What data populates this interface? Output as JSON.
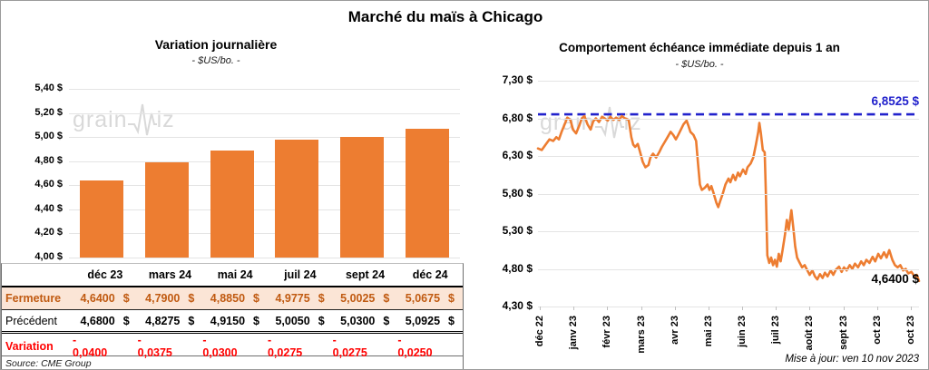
{
  "page": {
    "title": "Marché du maïs à Chicago",
    "updated": "Mise à jour: ven 10 nov 2023",
    "source": "Source: CME Group",
    "watermark_pre": "grain",
    "watermark_post": "iz"
  },
  "colors": {
    "accent_orange": "#ED7D31",
    "reference_blue": "#2222CC",
    "variation_red": "#FF0000",
    "fermeture_bg": "#FBE5D6",
    "fermeture_text": "#C05A11",
    "watermark_gray": "#D9D9D9",
    "gridline_gray": "#E4E4E4"
  },
  "chart_data": [
    {
      "type": "bar",
      "title": "Variation journalière",
      "subtitle": "- $US/bo. -",
      "categories": [
        "déc 23",
        "mars 24",
        "mai 24",
        "juil 24",
        "sept 24",
        "déc 24"
      ],
      "values": [
        4.64,
        4.79,
        4.885,
        4.9775,
        5.0025,
        5.0675
      ],
      "ylim": [
        4.0,
        5.4
      ],
      "ytick_labels": [
        "5,40 $",
        "5,20 $",
        "5,00 $",
        "4,80 $",
        "4,60 $",
        "4,40 $",
        "4,20 $",
        "4,00 $"
      ],
      "grid": true,
      "legend": "none"
    },
    {
      "type": "line",
      "title": "Comportement échéance immédiate depuis 1 an",
      "subtitle": "- $US/bo. -",
      "x_tick_labels": [
        "déc 22",
        "janv 23",
        "févr 23",
        "mars 23",
        "avr 23",
        "mai 23",
        "juin 23",
        "juil 23",
        "août 23",
        "sept 23",
        "oct 23",
        "oct 23"
      ],
      "ylim": [
        4.3,
        7.3
      ],
      "ytick_labels": [
        "7,30 $",
        "6,80 $",
        "6,30 $",
        "5,80 $",
        "5,30 $",
        "4,80 $",
        "4,30 $"
      ],
      "reference_line": {
        "value": 6.8525,
        "label": "6,8525 $",
        "style": "dashed"
      },
      "end_label": {
        "value": 4.64,
        "label": "4,6400 $"
      },
      "grid": true,
      "legend": "none",
      "points": [
        [
          0.0,
          6.4
        ],
        [
          0.01,
          6.38
        ],
        [
          0.02,
          6.45
        ],
        [
          0.03,
          6.52
        ],
        [
          0.04,
          6.5
        ],
        [
          0.048,
          6.55
        ],
        [
          0.055,
          6.52
        ],
        [
          0.062,
          6.62
        ],
        [
          0.07,
          6.72
        ],
        [
          0.077,
          6.81
        ],
        [
          0.085,
          6.78
        ],
        [
          0.092,
          6.65
        ],
        [
          0.1,
          6.6
        ],
        [
          0.108,
          6.7
        ],
        [
          0.115,
          6.8
        ],
        [
          0.122,
          6.83
        ],
        [
          0.13,
          6.72
        ],
        [
          0.138,
          6.65
        ],
        [
          0.145,
          6.76
        ],
        [
          0.152,
          6.8
        ],
        [
          0.16,
          6.75
        ],
        [
          0.168,
          6.82
        ],
        [
          0.175,
          6.8
        ],
        [
          0.183,
          6.77
        ],
        [
          0.19,
          6.82
        ],
        [
          0.198,
          6.78
        ],
        [
          0.205,
          6.81
        ],
        [
          0.213,
          6.78
        ],
        [
          0.22,
          6.83
        ],
        [
          0.228,
          6.8
        ],
        [
          0.238,
          6.78
        ],
        [
          0.245,
          6.55
        ],
        [
          0.25,
          6.45
        ],
        [
          0.255,
          6.42
        ],
        [
          0.262,
          6.46
        ],
        [
          0.268,
          6.35
        ],
        [
          0.275,
          6.22
        ],
        [
          0.282,
          6.15
        ],
        [
          0.29,
          6.18
        ],
        [
          0.295,
          6.28
        ],
        [
          0.302,
          6.33
        ],
        [
          0.31,
          6.28
        ],
        [
          0.318,
          6.35
        ],
        [
          0.325,
          6.42
        ],
        [
          0.332,
          6.48
        ],
        [
          0.34,
          6.55
        ],
        [
          0.348,
          6.62
        ],
        [
          0.355,
          6.58
        ],
        [
          0.362,
          6.52
        ],
        [
          0.368,
          6.58
        ],
        [
          0.375,
          6.65
        ],
        [
          0.382,
          6.72
        ],
        [
          0.39,
          6.77
        ],
        [
          0.395,
          6.7
        ],
        [
          0.4,
          6.62
        ],
        [
          0.408,
          6.58
        ],
        [
          0.415,
          6.5
        ],
        [
          0.42,
          6.2
        ],
        [
          0.425,
          5.92
        ],
        [
          0.43,
          5.85
        ],
        [
          0.438,
          5.88
        ],
        [
          0.445,
          5.92
        ],
        [
          0.45,
          5.85
        ],
        [
          0.455,
          5.9
        ],
        [
          0.46,
          5.82
        ],
        [
          0.468,
          5.68
        ],
        [
          0.473,
          5.62
        ],
        [
          0.478,
          5.7
        ],
        [
          0.485,
          5.8
        ],
        [
          0.492,
          5.92
        ],
        [
          0.5,
          6.0
        ],
        [
          0.505,
          5.95
        ],
        [
          0.512,
          6.05
        ],
        [
          0.518,
          5.98
        ],
        [
          0.525,
          6.08
        ],
        [
          0.53,
          6.03
        ],
        [
          0.538,
          6.12
        ],
        [
          0.545,
          6.06
        ],
        [
          0.55,
          6.15
        ],
        [
          0.558,
          6.2
        ],
        [
          0.565,
          6.28
        ],
        [
          0.572,
          6.45
        ],
        [
          0.578,
          6.62
        ],
        [
          0.581,
          6.74
        ],
        [
          0.585,
          6.6
        ],
        [
          0.59,
          6.38
        ],
        [
          0.595,
          6.35
        ],
        [
          0.598,
          5.8
        ],
        [
          0.602,
          4.98
        ],
        [
          0.607,
          4.88
        ],
        [
          0.612,
          4.95
        ],
        [
          0.617,
          4.85
        ],
        [
          0.622,
          4.92
        ],
        [
          0.627,
          4.83
        ],
        [
          0.632,
          5.0
        ],
        [
          0.637,
          4.9
        ],
        [
          0.642,
          5.05
        ],
        [
          0.648,
          5.25
        ],
        [
          0.653,
          5.45
        ],
        [
          0.658,
          5.32
        ],
        [
          0.665,
          5.58
        ],
        [
          0.67,
          5.35
        ],
        [
          0.675,
          5.1
        ],
        [
          0.68,
          4.95
        ],
        [
          0.687,
          4.88
        ],
        [
          0.693,
          4.82
        ],
        [
          0.7,
          4.85
        ],
        [
          0.707,
          4.78
        ],
        [
          0.713,
          4.72
        ],
        [
          0.72,
          4.78
        ],
        [
          0.727,
          4.7
        ],
        [
          0.733,
          4.66
        ],
        [
          0.74,
          4.73
        ],
        [
          0.747,
          4.68
        ],
        [
          0.753,
          4.75
        ],
        [
          0.76,
          4.7
        ],
        [
          0.768,
          4.78
        ],
        [
          0.775,
          4.72
        ],
        [
          0.782,
          4.79
        ],
        [
          0.79,
          4.83
        ],
        [
          0.797,
          4.76
        ],
        [
          0.803,
          4.82
        ],
        [
          0.81,
          4.78
        ],
        [
          0.818,
          4.85
        ],
        [
          0.825,
          4.8
        ],
        [
          0.832,
          4.87
        ],
        [
          0.84,
          4.82
        ],
        [
          0.848,
          4.9
        ],
        [
          0.855,
          4.85
        ],
        [
          0.862,
          4.92
        ],
        [
          0.87,
          4.88
        ],
        [
          0.878,
          4.96
        ],
        [
          0.885,
          4.9
        ],
        [
          0.893,
          5.0
        ],
        [
          0.9,
          4.94
        ],
        [
          0.908,
          5.02
        ],
        [
          0.915,
          4.95
        ],
        [
          0.922,
          5.05
        ],
        [
          0.93,
          4.92
        ],
        [
          0.937,
          4.85
        ],
        [
          0.944,
          4.82
        ],
        [
          0.951,
          4.85
        ],
        [
          0.958,
          4.78
        ],
        [
          0.965,
          4.8
        ],
        [
          0.972,
          4.74
        ],
        [
          0.98,
          4.76
        ],
        [
          0.988,
          4.7
        ],
        [
          0.994,
          4.72
        ],
        [
          1.0,
          4.64
        ]
      ]
    }
  ],
  "table": {
    "columns": [
      "",
      "déc 23",
      "mars 24",
      "mai 24",
      "juil 24",
      "sept 24",
      "déc 24"
    ],
    "rows": [
      {
        "label": "Fermeture",
        "style": "fermeture",
        "values": [
          "4,6400 $",
          "4,7900 $",
          "4,8850 $",
          "4,9775 $",
          "5,0025 $",
          "5,0675 $"
        ]
      },
      {
        "label": "Précédent",
        "style": "precedent",
        "values": [
          "4,6800 $",
          "4,8275 $",
          "4,9150 $",
          "5,0050 $",
          "5,0300 $",
          "5,0925 $"
        ]
      },
      {
        "label": "Variation",
        "style": "variation",
        "values": [
          "- 0,0400",
          "- 0,0375",
          "- 0,0300",
          "- 0,0275",
          "- 0,0275",
          "- 0,0250"
        ]
      }
    ]
  }
}
